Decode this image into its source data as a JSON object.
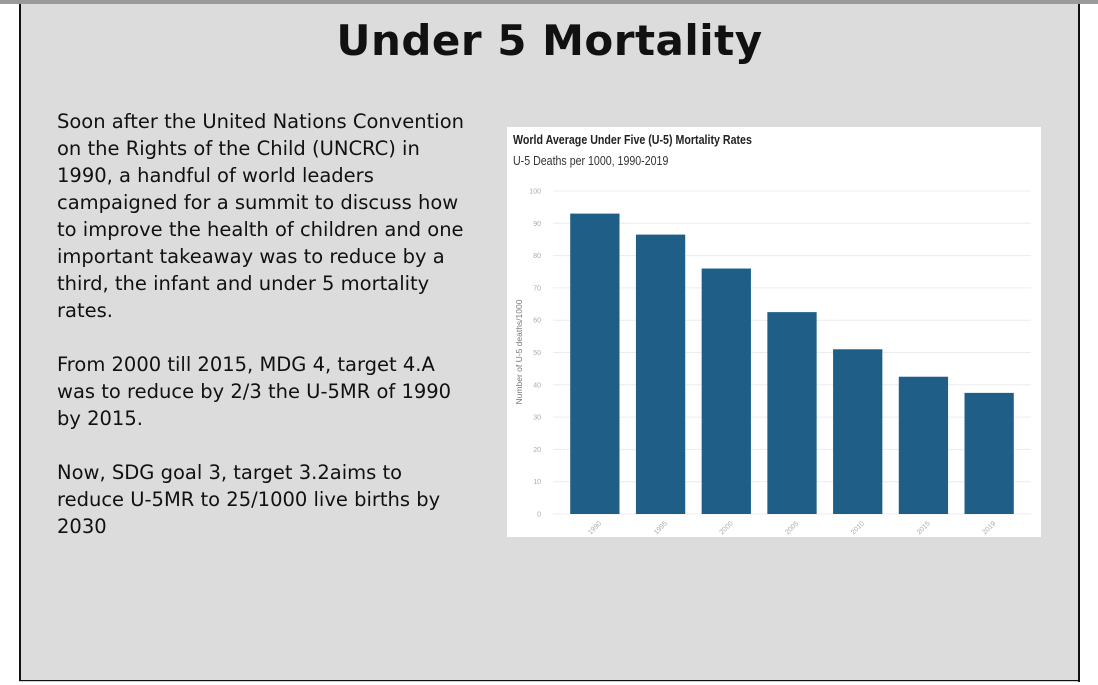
{
  "slide": {
    "title": "Under 5 Mortality",
    "paragraphs": [
      "Soon after the United Nations Convention on the Rights of the Child (UNCRC) in 1990, a handful of world leaders campaigned for a summit to discuss how to improve the health of children and one important takeaway was to reduce by a third, the infant and under 5 mortality rates.",
      "From 2000 till 2015, MDG 4, target 4.A was to reduce by 2/3 the U-5MR of 1990 by 2015.",
      "Now, SDG goal 3, target 3.2aims to reduce U-5MR to 25/1000 live births by 2030"
    ]
  },
  "chart_data": {
    "type": "bar",
    "title": "World Average Under Five (U-5) Mortality Rates",
    "subtitle": "U-5 Deaths per 1000, 1990-2019",
    "xlabel": "",
    "ylabel": "Number of U-5 deaths/1000",
    "categories": [
      "1990",
      "1995",
      "2000",
      "2005",
      "2010",
      "2015",
      "2019"
    ],
    "values": [
      93,
      86.5,
      76,
      62.5,
      51,
      42.5,
      37.5
    ],
    "ylim": [
      0,
      100
    ],
    "yticks": [
      0,
      10,
      20,
      30,
      40,
      50,
      60,
      70,
      80,
      90,
      100
    ],
    "bar_color": "#1f5f87",
    "grid": true
  }
}
